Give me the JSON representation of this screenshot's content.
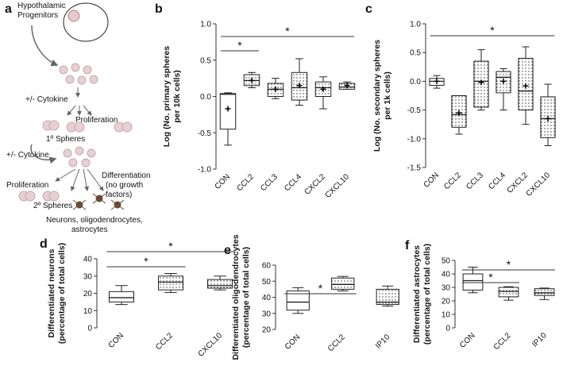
{
  "diagram": {
    "panel": "a",
    "texts": [
      "Hypothalamic",
      "Progenitors",
      "+/- Cytokine",
      "Proliferation",
      "1º Spheres",
      "+/- Cytokine",
      "Proliferation",
      "Differentiation",
      "(no growth",
      "factors)",
      "2º Spheres",
      "Neurons, oligodendrocytes,",
      "astrocytes"
    ]
  },
  "chart_data": [
    {
      "type": "box",
      "panel": "b",
      "ylabel": [
        "Log (No. primary spheres",
        "per 10k cells)"
      ],
      "categories": [
        "CON",
        "CCL2",
        "CCL3",
        "CCL4",
        "CXCL2",
        "CXCL10"
      ],
      "whisker_low": [
        -0.67,
        0.12,
        -0.03,
        -0.12,
        -0.17,
        0.1
      ],
      "q1": [
        -0.45,
        0.15,
        0.0,
        -0.05,
        0.0,
        0.1
      ],
      "median": [
        0.03,
        0.22,
        0.1,
        0.12,
        0.12,
        0.13
      ],
      "q3": [
        0.04,
        0.3,
        0.18,
        0.33,
        0.2,
        0.18
      ],
      "whisker_high": [
        0.05,
        0.33,
        0.25,
        0.52,
        0.27,
        0.2
      ],
      "mean": [
        -0.17,
        0.22,
        0.1,
        0.15,
        0.1,
        0.15
      ],
      "box_fill": [
        "none",
        "dots",
        "dots",
        "dots",
        "dots",
        "dots"
      ],
      "ylim": [
        -1,
        1
      ],
      "yticks": [
        {
          "value": -1,
          "label": "-1.0"
        },
        {
          "value": -0.5,
          "label": "-0.5"
        },
        {
          "value": 0,
          "label": "0.0"
        },
        {
          "value": 0.5,
          "label": "0.5"
        },
        {
          "value": 1,
          "label": "1.0"
        }
      ],
      "significance": [
        {
          "from": 0,
          "to": 1,
          "label": "*"
        },
        {
          "from": 0,
          "to": 5,
          "label": "*"
        }
      ]
    },
    {
      "type": "box",
      "panel": "c",
      "ylabel": [
        "Log (No. secondary spheres",
        "per 1k cells)"
      ],
      "categories": [
        "CON",
        "CCL2",
        "CCL3",
        "CCL4",
        "CXCL2",
        "CXCL10"
      ],
      "whisker_low": [
        -0.12,
        -0.92,
        -0.5,
        -0.5,
        -0.75,
        -1.12
      ],
      "q1": [
        -0.07,
        -0.8,
        -0.45,
        -0.2,
        -0.5,
        -0.98
      ],
      "median": [
        0.0,
        -0.58,
        0.0,
        0.07,
        -0.17,
        -0.65
      ],
      "q3": [
        0.05,
        -0.25,
        0.35,
        0.17,
        0.4,
        -0.27
      ],
      "whisker_high": [
        0.1,
        -0.25,
        0.55,
        0.22,
        0.6,
        -0.05
      ],
      "mean": [
        0.0,
        -0.55,
        -0.02,
        0.0,
        -0.08,
        -0.65
      ],
      "box_fill": [
        "none",
        "dots",
        "dots",
        "dots",
        "dots",
        "dots"
      ],
      "ylim": [
        -1.5,
        1
      ],
      "yticks": [
        {
          "value": -1.5,
          "label": "-1.5"
        },
        {
          "value": -1,
          "label": "-1.0"
        },
        {
          "value": -0.5,
          "label": "-0.5"
        },
        {
          "value": 0,
          "label": "0.0"
        },
        {
          "value": 0.5,
          "label": "0.5"
        },
        {
          "value": 1,
          "label": "1.0"
        }
      ],
      "significance": [
        {
          "from": 0,
          "to": 5,
          "label": "*"
        }
      ]
    },
    {
      "type": "box",
      "panel": "d",
      "ylabel": [
        "Differentiated neurons",
        "(percentage of total cells)"
      ],
      "categories": [
        "CON",
        "CCL2",
        "CXCL10"
      ],
      "whisker_low": [
        13.5,
        20.5,
        22
      ],
      "q1": [
        15,
        22,
        23
      ],
      "median": [
        17.5,
        26.5,
        24.5
      ],
      "q3": [
        21,
        30,
        28
      ],
      "whisker_high": [
        24.5,
        31.5,
        30
      ],
      "box_fill": [
        "none",
        "dots",
        "dots"
      ],
      "ylim": [
        0,
        40
      ],
      "yticks": [
        0,
        10,
        20,
        30,
        40
      ],
      "significance": [
        {
          "from": 0,
          "to": 1,
          "label": "*"
        },
        {
          "from": 0,
          "to": 2,
          "label": "*"
        }
      ]
    },
    {
      "type": "box",
      "panel": "e",
      "ylabel": [
        "Differentiated oligodendrocytes",
        "(percentage of total cells)"
      ],
      "categories": [
        "CON",
        "CCL2",
        "IP10"
      ],
      "whisker_low": [
        30,
        44,
        34.5
      ],
      "q1": [
        32,
        45,
        35.5
      ],
      "median": [
        37,
        48,
        37
      ],
      "q3": [
        44,
        52,
        45
      ],
      "whisker_high": [
        46,
        53,
        47
      ],
      "box_fill": [
        "none",
        "dots",
        "dots"
      ],
      "ylim": [
        20,
        60
      ],
      "yticks": [
        20,
        30,
        40,
        50,
        60
      ],
      "significance": [
        {
          "from": 0,
          "to": 1,
          "label": "*"
        }
      ]
    },
    {
      "type": "box",
      "panel": "f",
      "ylabel": [
        "Differentiated astrocytes",
        "(percentage of total cells)"
      ],
      "categories": [
        "CON",
        "CCL2",
        "IP10"
      ],
      "whisker_low": [
        26,
        20.5,
        21
      ],
      "q1": [
        28,
        23,
        24
      ],
      "median": [
        35,
        27,
        26
      ],
      "q3": [
        40,
        30,
        29
      ],
      "whisker_high": [
        45,
        30.5,
        29.5
      ],
      "box_fill": [
        "none",
        "dots",
        "dots"
      ],
      "ylim": [
        0,
        50
      ],
      "yticks": [
        0,
        10,
        20,
        30,
        40,
        50
      ],
      "significance": [
        {
          "from": 0,
          "to": 1,
          "label": "*"
        },
        {
          "from": 0,
          "to": 2,
          "label": "*"
        }
      ]
    }
  ]
}
